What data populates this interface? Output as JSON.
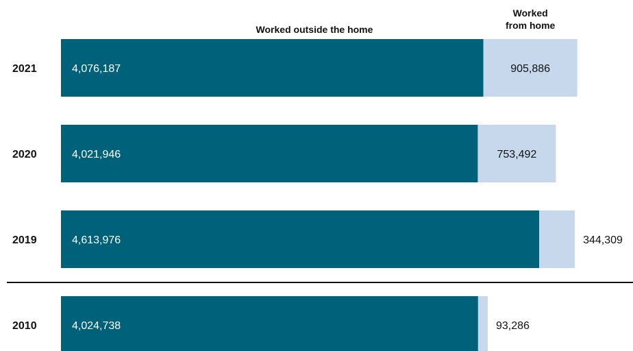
{
  "chart_data": {
    "type": "bar",
    "orientation": "horizontal",
    "stacked": true,
    "categories": [
      "2021",
      "2020",
      "2019",
      "2010"
    ],
    "series": [
      {
        "name": "Worked outside the home",
        "color": "#00627a",
        "values": [
          4076187,
          4021946,
          4613976,
          4024738
        ],
        "labels": [
          "4,076,187",
          "4,021,946",
          "4,613,976",
          "4,024,738"
        ]
      },
      {
        "name": "Worked\nfrom home",
        "color": "#c8d8ec",
        "values": [
          905886,
          753492,
          344309,
          93286
        ],
        "labels": [
          "905,886",
          "753,492",
          "344,309",
          "93,286"
        ]
      }
    ],
    "title": "",
    "xlabel": "",
    "ylabel": "",
    "grid": false,
    "legend": "series names printed above the columns",
    "separator_before_category": "2010"
  }
}
